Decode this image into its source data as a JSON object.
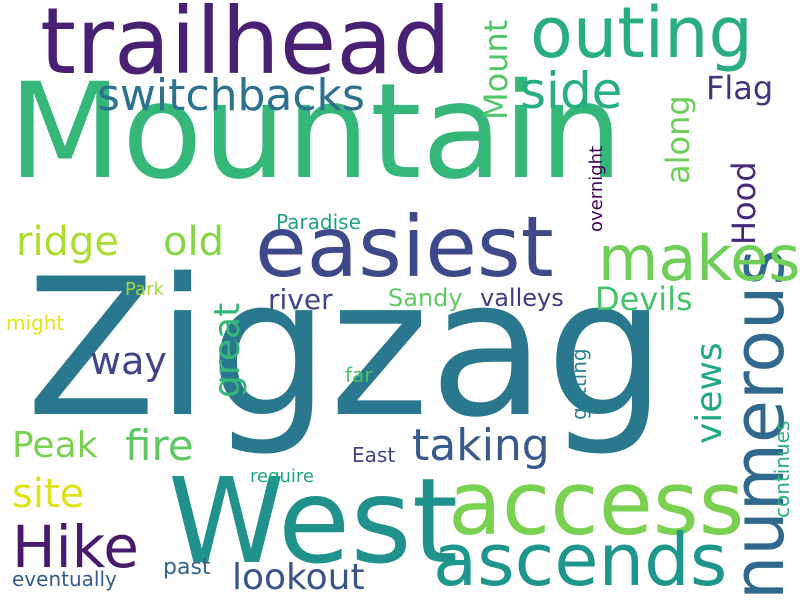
{
  "words": [
    {
      "text": "Mountain",
      "color": "#35b779"
    },
    {
      "text": "Zigzag",
      "color": "#2a788e"
    },
    {
      "text": "West",
      "color": "#21918c"
    },
    {
      "text": "trailhead",
      "color": "#482173"
    },
    {
      "text": "easiest",
      "color": "#3e4989"
    },
    {
      "text": "access",
      "color": "#7ad151"
    },
    {
      "text": "outing",
      "color": "#29af7f"
    },
    {
      "text": "ascends",
      "color": "#1f968b"
    },
    {
      "text": "numerous",
      "color": "#31688e"
    },
    {
      "text": "makes",
      "color": "#6ece58"
    },
    {
      "text": "Hike",
      "color": "#481a6c"
    },
    {
      "text": "switchbacks",
      "color": "#2c728e"
    },
    {
      "text": "side",
      "color": "#26ad81"
    },
    {
      "text": "fire",
      "color": "#5ec962"
    },
    {
      "text": "taking",
      "color": "#38598c"
    },
    {
      "text": "ridge",
      "color": "#addc30"
    },
    {
      "text": "old",
      "color": "#86d549"
    },
    {
      "text": "lookout",
      "color": "#3b528b"
    },
    {
      "text": "site",
      "color": "#dde318"
    },
    {
      "text": "Peak",
      "color": "#7ad151"
    },
    {
      "text": "way",
      "color": "#414487"
    },
    {
      "text": "great",
      "color": "#35b779"
    },
    {
      "text": "Devils",
      "color": "#4ac16d"
    },
    {
      "text": "views",
      "color": "#22a884"
    },
    {
      "text": "Mount",
      "color": "#52c569"
    },
    {
      "text": "along",
      "color": "#6ece58"
    },
    {
      "text": "Hood",
      "color": "#482878"
    },
    {
      "text": "Flag",
      "color": "#46337e"
    },
    {
      "text": "river",
      "color": "#404688"
    },
    {
      "text": "Sandy",
      "color": "#5ec962"
    },
    {
      "text": "valleys",
      "color": "#443983"
    },
    {
      "text": "Paradise",
      "color": "#1fa187"
    },
    {
      "text": "overnight",
      "color": "#440154"
    },
    {
      "text": "Park",
      "color": "#a0da39"
    },
    {
      "text": "might",
      "color": "#e5e419"
    },
    {
      "text": "far",
      "color": "#4ac16d"
    },
    {
      "text": "getting",
      "color": "#27808e"
    },
    {
      "text": "continues",
      "color": "#2db27d"
    },
    {
      "text": "East",
      "color": "#414487"
    },
    {
      "text": "require",
      "color": "#20a386"
    },
    {
      "text": "past",
      "color": "#33638d"
    },
    {
      "text": "eventually",
      "color": "#365c8d"
    }
  ]
}
